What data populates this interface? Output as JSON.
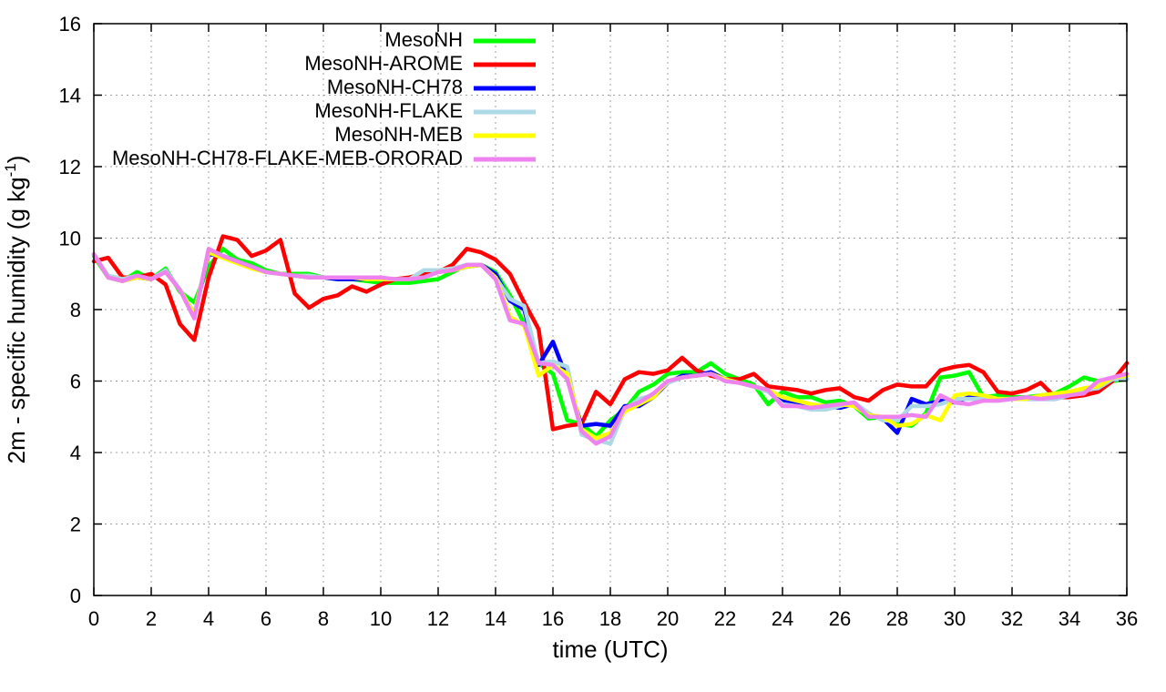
{
  "chart_data": {
    "type": "line",
    "title": "",
    "xlabel": "time (UTC)",
    "ylabel": "2m - specific humidity (g kg-1)",
    "ylabel_parts": {
      "main": "2m - specific humidity (g kg",
      "sup": "-1",
      "end": ")"
    },
    "xlim": [
      0,
      36
    ],
    "ylim": [
      0,
      16
    ],
    "xticks": [
      "0",
      "2",
      "4",
      "6",
      "8",
      "10",
      "12",
      "14",
      "16",
      "18",
      "20",
      "22",
      "24",
      "26",
      "28",
      "30",
      "32",
      "34",
      "36"
    ],
    "yticks": [
      "0",
      "2",
      "4",
      "6",
      "8",
      "10",
      "12",
      "14",
      "16"
    ],
    "grid": true,
    "legend_position": "top-center",
    "x": [
      0,
      0.5,
      1,
      1.5,
      2,
      2.5,
      3,
      3.5,
      4,
      4.5,
      5,
      5.5,
      6,
      6.5,
      7,
      7.5,
      8,
      8.5,
      9,
      9.5,
      10,
      10.5,
      11,
      11.5,
      12,
      12.5,
      13,
      13.5,
      14,
      14.5,
      15,
      15.5,
      16,
      16.5,
      17,
      17.5,
      18,
      18.5,
      19,
      19.5,
      20,
      20.5,
      21,
      21.5,
      22,
      22.5,
      23,
      23.5,
      24,
      24.5,
      25,
      25.5,
      26,
      26.5,
      27,
      27.5,
      28,
      28.5,
      29,
      29.5,
      30,
      30.5,
      31,
      31.5,
      32,
      32.5,
      33,
      33.5,
      34,
      34.5,
      35,
      35.5,
      36
    ],
    "series": [
      {
        "name": "MesoNH",
        "color": "#00ff00",
        "values": [
          9.5,
          8.9,
          8.8,
          9.05,
          8.85,
          9.15,
          8.5,
          8.2,
          9.2,
          9.7,
          9.4,
          9.3,
          9.1,
          9.0,
          9.0,
          9.0,
          8.9,
          8.85,
          8.85,
          8.8,
          8.75,
          8.75,
          8.75,
          8.8,
          8.85,
          9.05,
          9.25,
          9.25,
          9.05,
          8.4,
          7.6,
          6.5,
          6.2,
          4.9,
          4.8,
          4.45,
          4.9,
          5.2,
          5.7,
          5.9,
          6.2,
          6.25,
          6.25,
          6.5,
          6.2,
          6.05,
          5.9,
          5.35,
          5.7,
          5.55,
          5.55,
          5.4,
          5.45,
          5.3,
          4.95,
          5.0,
          4.8,
          4.75,
          5.1,
          6.1,
          6.15,
          6.25,
          5.55,
          5.6,
          5.55,
          5.55,
          5.6,
          5.65,
          5.85,
          6.1,
          6.0,
          6.0,
          6.05
        ]
      },
      {
        "name": "MesoNH-AROME",
        "color": "#ff0000",
        "values": [
          9.35,
          9.45,
          8.9,
          8.9,
          9.0,
          8.7,
          7.6,
          7.15,
          8.9,
          10.05,
          9.95,
          9.5,
          9.65,
          9.95,
          8.45,
          8.05,
          8.3,
          8.4,
          8.65,
          8.5,
          8.7,
          8.85,
          8.9,
          9.0,
          9.05,
          9.25,
          9.7,
          9.6,
          9.4,
          9.0,
          8.2,
          7.45,
          4.65,
          4.75,
          4.8,
          5.7,
          5.35,
          6.05,
          6.25,
          6.2,
          6.3,
          6.65,
          6.3,
          6.15,
          6.05,
          6.05,
          6.2,
          5.85,
          5.8,
          5.75,
          5.65,
          5.75,
          5.8,
          5.55,
          5.45,
          5.75,
          5.9,
          5.85,
          5.85,
          6.3,
          6.4,
          6.45,
          6.25,
          5.7,
          5.65,
          5.75,
          5.95,
          5.55,
          5.55,
          5.6,
          5.7,
          6.0,
          6.5
        ]
      },
      {
        "name": "MesoNH-CH78",
        "color": "#0000ff",
        "values": [
          9.55,
          8.9,
          8.8,
          8.9,
          8.85,
          9.1,
          8.55,
          7.85,
          9.55,
          9.5,
          9.35,
          9.2,
          9.05,
          9.0,
          8.95,
          8.9,
          8.9,
          8.85,
          8.85,
          8.85,
          8.85,
          8.85,
          8.85,
          8.9,
          9.05,
          9.1,
          9.2,
          9.25,
          9.0,
          8.25,
          8.0,
          6.45,
          7.1,
          6.05,
          4.75,
          4.8,
          4.75,
          5.3,
          5.3,
          5.55,
          5.95,
          6.15,
          6.15,
          6.25,
          6.05,
          5.95,
          5.85,
          5.75,
          5.45,
          5.4,
          5.3,
          5.3,
          5.25,
          5.35,
          5.05,
          4.95,
          4.55,
          5.5,
          5.35,
          5.45,
          5.4,
          5.55,
          5.5,
          5.5,
          5.5,
          5.5,
          5.5,
          5.5,
          5.6,
          5.75,
          5.8,
          6.05,
          6.05
        ]
      },
      {
        "name": "MesoNH-FLAKE",
        "color": "#add8e6",
        "values": [
          9.55,
          8.95,
          8.85,
          8.95,
          8.85,
          9.1,
          8.55,
          7.9,
          9.6,
          9.45,
          9.3,
          9.15,
          9.05,
          9.0,
          8.95,
          8.95,
          8.9,
          8.9,
          8.9,
          8.9,
          8.85,
          8.85,
          8.85,
          9.1,
          9.1,
          9.15,
          9.25,
          9.25,
          8.9,
          8.3,
          8.1,
          6.5,
          6.55,
          6.4,
          4.5,
          4.35,
          4.25,
          5.2,
          5.5,
          5.6,
          5.95,
          6.1,
          6.15,
          6.2,
          6.05,
          5.95,
          5.85,
          5.7,
          5.35,
          5.3,
          5.2,
          5.2,
          5.3,
          5.4,
          5.1,
          4.9,
          4.9,
          5.3,
          5.3,
          5.35,
          5.5,
          5.5,
          5.5,
          5.5,
          5.5,
          5.5,
          5.5,
          5.5,
          5.6,
          5.75,
          5.8,
          6.05,
          6.05
        ]
      },
      {
        "name": "MesoNH-MEB",
        "color": "#ffff00",
        "values": [
          9.55,
          8.9,
          8.8,
          8.9,
          8.85,
          9.05,
          8.55,
          7.85,
          9.6,
          9.45,
          9.3,
          9.15,
          9.05,
          9.0,
          8.95,
          8.9,
          8.9,
          8.9,
          8.9,
          8.85,
          8.85,
          8.85,
          8.85,
          8.9,
          9.05,
          9.1,
          9.2,
          9.25,
          8.9,
          7.8,
          7.55,
          6.15,
          6.45,
          6.2,
          4.65,
          4.4,
          4.55,
          5.15,
          5.35,
          5.55,
          6.0,
          6.1,
          6.15,
          6.2,
          6.05,
          5.95,
          5.85,
          5.75,
          5.55,
          5.45,
          5.35,
          5.3,
          5.35,
          5.3,
          5.05,
          5.0,
          4.75,
          4.8,
          5.05,
          4.9,
          5.6,
          5.65,
          5.6,
          5.5,
          5.5,
          5.5,
          5.6,
          5.65,
          5.7,
          5.8,
          5.85,
          6.1,
          6.15
        ]
      },
      {
        "name": "MesoNH-CH78-FLAKE-MEB-ORORAD",
        "color": "#ee82ee",
        "values": [
          9.55,
          8.9,
          8.8,
          8.95,
          8.85,
          9.05,
          8.55,
          7.75,
          9.7,
          9.5,
          9.35,
          9.2,
          9.05,
          9.0,
          8.95,
          8.9,
          8.9,
          8.9,
          8.9,
          8.9,
          8.9,
          8.85,
          8.85,
          8.9,
          9.05,
          9.1,
          9.25,
          9.25,
          8.85,
          7.7,
          7.6,
          6.5,
          6.45,
          6.05,
          4.6,
          4.25,
          4.45,
          5.25,
          5.4,
          5.65,
          6.0,
          6.1,
          6.15,
          6.2,
          6.0,
          5.95,
          5.85,
          5.75,
          5.3,
          5.3,
          5.25,
          5.3,
          5.35,
          5.4,
          5.0,
          5.0,
          5.0,
          5.05,
          5.0,
          5.6,
          5.4,
          5.35,
          5.45,
          5.45,
          5.5,
          5.55,
          5.5,
          5.55,
          5.6,
          5.65,
          6.0,
          6.1,
          6.2
        ]
      }
    ]
  }
}
